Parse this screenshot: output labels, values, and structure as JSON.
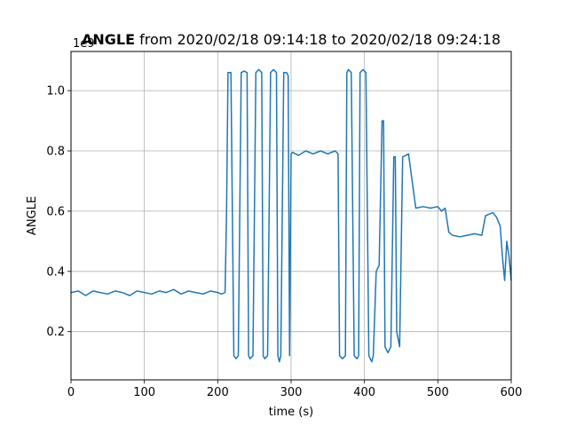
{
  "chart_data": {
    "type": "line",
    "title_bold": "ANGLE",
    "title_rest": " from 2020/02/18 09:14:18 to 2020/02/18 09:24:18",
    "xlabel": "time (s)",
    "ylabel": "ANGLE",
    "y_offset_label": "1e9",
    "xlim": [
      0,
      600
    ],
    "ylim": [
      0.04,
      1.13
    ],
    "grid": true,
    "x_ticks": [
      0,
      100,
      200,
      300,
      400,
      500,
      600
    ],
    "x_tick_labels": [
      "0",
      "100",
      "200",
      "300",
      "400",
      "500",
      "600"
    ],
    "y_ticks": [
      0.2,
      0.4,
      0.6,
      0.8,
      1.0
    ],
    "y_tick_labels": [
      "0.2",
      "0.4",
      "0.6",
      "0.8",
      "1.0"
    ],
    "series": [
      {
        "color": "#1f77b4",
        "x": [
          0,
          10,
          20,
          30,
          40,
          50,
          60,
          70,
          80,
          90,
          100,
          110,
          120,
          130,
          140,
          150,
          160,
          170,
          180,
          190,
          200,
          205,
          210,
          212,
          214,
          216,
          218,
          222,
          225,
          228,
          232,
          236,
          240,
          242,
          244,
          248,
          252,
          256,
          260,
          262,
          264,
          268,
          272,
          276,
          280,
          282,
          284,
          286,
          290,
          294,
          296,
          298,
          300,
          302,
          310,
          320,
          330,
          340,
          350,
          360,
          364,
          366,
          370,
          374,
          376,
          378,
          382,
          386,
          390,
          392,
          394,
          398,
          402,
          406,
          410,
          412,
          416,
          420,
          424,
          426,
          428,
          432,
          436,
          440,
          442,
          444,
          448,
          452,
          460,
          470,
          480,
          490,
          500,
          505,
          510,
          515,
          520,
          530,
          540,
          550,
          560,
          565,
          570,
          575,
          580,
          585,
          588,
          591,
          594,
          597,
          600
        ],
        "y": [
          0.33,
          0.335,
          0.32,
          0.335,
          0.33,
          0.325,
          0.335,
          0.33,
          0.32,
          0.335,
          0.33,
          0.325,
          0.335,
          0.33,
          0.34,
          0.325,
          0.335,
          0.33,
          0.325,
          0.335,
          0.33,
          0.325,
          0.33,
          0.6,
          1.06,
          1.06,
          1.06,
          0.12,
          0.11,
          0.12,
          1.06,
          1.065,
          1.06,
          0.12,
          0.11,
          0.12,
          1.06,
          1.07,
          1.06,
          0.12,
          0.11,
          0.12,
          1.06,
          1.07,
          1.06,
          0.12,
          0.1,
          0.12,
          1.06,
          1.06,
          1.05,
          0.12,
          0.79,
          0.795,
          0.785,
          0.8,
          0.79,
          0.8,
          0.79,
          0.8,
          0.79,
          0.12,
          0.11,
          0.12,
          1.06,
          1.07,
          1.06,
          0.12,
          0.11,
          0.12,
          1.06,
          1.07,
          1.06,
          0.12,
          0.1,
          0.12,
          0.4,
          0.42,
          0.9,
          0.9,
          0.15,
          0.13,
          0.15,
          0.78,
          0.78,
          0.2,
          0.15,
          0.78,
          0.79,
          0.61,
          0.615,
          0.61,
          0.615,
          0.6,
          0.61,
          0.53,
          0.52,
          0.515,
          0.52,
          0.525,
          0.52,
          0.585,
          0.59,
          0.595,
          0.58,
          0.55,
          0.45,
          0.37,
          0.5,
          0.45,
          0.37
        ]
      }
    ]
  }
}
